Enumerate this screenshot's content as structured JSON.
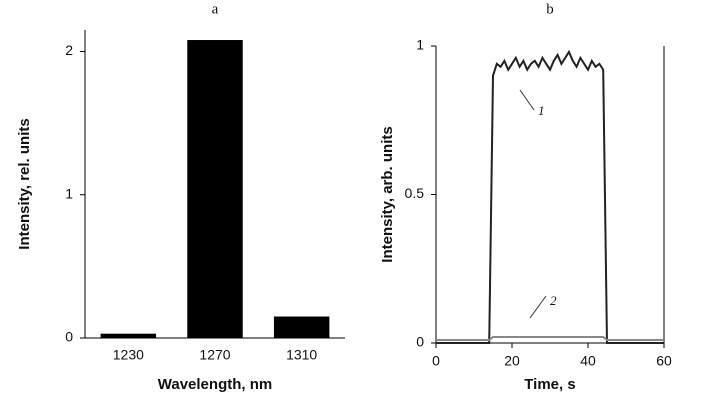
{
  "chart_data": [
    {
      "type": "bar",
      "title": "a",
      "x_label": "Wavelength, nm",
      "y_label": "Intensity, rel. units",
      "categories": [
        "1230",
        "1270",
        "1310"
      ],
      "values": [
        0.03,
        2.08,
        0.15
      ],
      "color": "#000000",
      "ylim": [
        0,
        2.15
      ],
      "yticks": [
        0,
        1,
        2
      ]
    },
    {
      "type": "line",
      "title": "b",
      "x_label": "Time, s",
      "y_label": "Intensity, arb. units",
      "x": [
        0,
        1,
        2,
        3,
        4,
        5,
        6,
        7,
        8,
        9,
        10,
        11,
        12,
        13,
        14,
        15,
        16,
        17,
        18,
        19,
        20,
        21,
        22,
        23,
        24,
        25,
        26,
        27,
        28,
        29,
        30,
        31,
        32,
        33,
        34,
        35,
        36,
        37,
        38,
        39,
        40,
        41,
        42,
        43,
        44,
        45,
        46,
        47,
        48,
        49,
        50,
        51,
        52,
        53,
        54,
        55,
        56,
        57,
        58,
        59,
        60
      ],
      "series": [
        {
          "name": "1",
          "color": "#222222",
          "values": [
            0,
            0,
            0,
            0,
            0,
            0,
            0,
            0,
            0,
            0,
            0,
            0,
            0,
            0,
            0,
            0.9,
            0.94,
            0.93,
            0.95,
            0.92,
            0.94,
            0.96,
            0.93,
            0.95,
            0.92,
            0.94,
            0.95,
            0.93,
            0.96,
            0.94,
            0.92,
            0.95,
            0.97,
            0.94,
            0.96,
            0.98,
            0.95,
            0.93,
            0.96,
            0.94,
            0.92,
            0.95,
            0.93,
            0.94,
            0.92,
            0,
            0,
            0,
            0,
            0,
            0,
            0,
            0,
            0,
            0,
            0,
            0,
            0,
            0,
            0,
            0
          ]
        },
        {
          "name": "2",
          "color": "#888888",
          "values": [
            0.01,
            0.01,
            0.01,
            0.01,
            0.01,
            0.01,
            0.01,
            0.01,
            0.01,
            0.01,
            0.01,
            0.01,
            0.01,
            0.01,
            0.01,
            0.02,
            0.02,
            0.02,
            0.02,
            0.02,
            0.02,
            0.02,
            0.02,
            0.02,
            0.02,
            0.02,
            0.02,
            0.02,
            0.02,
            0.02,
            0.02,
            0.02,
            0.02,
            0.02,
            0.02,
            0.02,
            0.02,
            0.02,
            0.02,
            0.02,
            0.02,
            0.02,
            0.02,
            0.02,
            0.02,
            0.01,
            0.01,
            0.01,
            0.01,
            0.01,
            0.01,
            0.01,
            0.01,
            0.01,
            0.01,
            0.01,
            0.01,
            0.01,
            0.01,
            0.01,
            0.01
          ]
        }
      ],
      "xlim": [
        0,
        60
      ],
      "xticks": [
        0,
        20,
        40,
        60
      ],
      "ylim": [
        0,
        1
      ],
      "yticks": [
        0,
        {
          "value": 0.5,
          "label": "0.5"
        },
        1
      ]
    }
  ]
}
